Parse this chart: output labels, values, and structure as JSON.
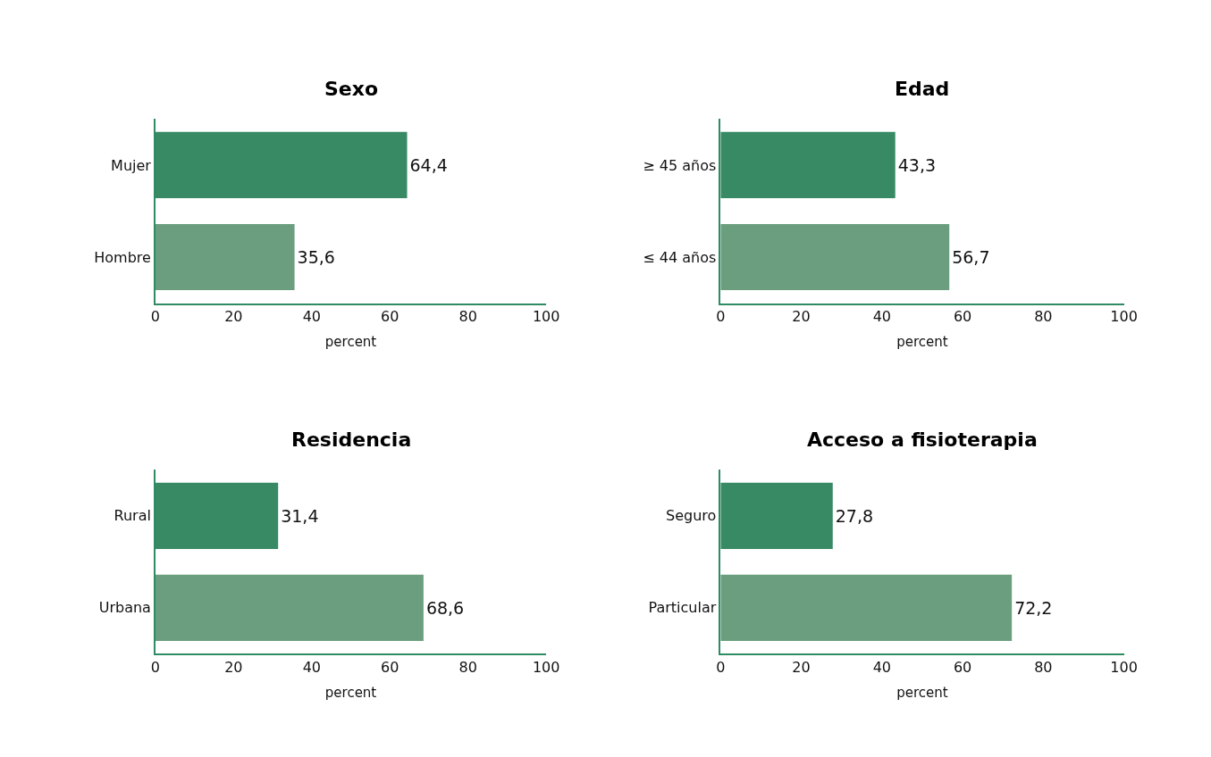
{
  "chart_data": [
    {
      "type": "bar",
      "orientation": "horizontal",
      "title": "Sexo",
      "xlabel": "percent",
      "categories": [
        "Mujer",
        "Hombre"
      ],
      "values": [
        64.4,
        35.6
      ],
      "colors": [
        "#388a64",
        "#6a9e7e"
      ],
      "value_labels": [
        "64,4",
        "35,6"
      ],
      "xlim": [
        0,
        100
      ],
      "xticks": [
        0,
        20,
        40,
        60,
        80,
        100
      ]
    },
    {
      "type": "bar",
      "orientation": "horizontal",
      "title": "Edad",
      "xlabel": "percent",
      "categories": [
        "≥ 45 años",
        "≤ 44 años"
      ],
      "values": [
        43.3,
        56.7
      ],
      "colors": [
        "#388a64",
        "#6a9e7e"
      ],
      "value_labels": [
        "43,3",
        "56,7"
      ],
      "xlim": [
        0,
        100
      ],
      "xticks": [
        0,
        20,
        40,
        60,
        80,
        100
      ]
    },
    {
      "type": "bar",
      "orientation": "horizontal",
      "title": "Residencia",
      "xlabel": "percent",
      "categories": [
        "Rural",
        "Urbana"
      ],
      "values": [
        31.4,
        68.6
      ],
      "colors": [
        "#388a64",
        "#6a9e7e"
      ],
      "value_labels": [
        "31,4",
        "68,6"
      ],
      "xlim": [
        0,
        100
      ],
      "xticks": [
        0,
        20,
        40,
        60,
        80,
        100
      ]
    },
    {
      "type": "bar",
      "orientation": "horizontal",
      "title": "Acceso a fisioterapia",
      "xlabel": "percent",
      "categories": [
        "Seguro",
        "Particular"
      ],
      "values": [
        27.8,
        72.2
      ],
      "colors": [
        "#388a64",
        "#6a9e7e"
      ],
      "value_labels": [
        "27,8",
        "72,2"
      ],
      "xlim": [
        0,
        100
      ],
      "xticks": [
        0,
        20,
        40,
        60,
        80,
        100
      ]
    }
  ]
}
